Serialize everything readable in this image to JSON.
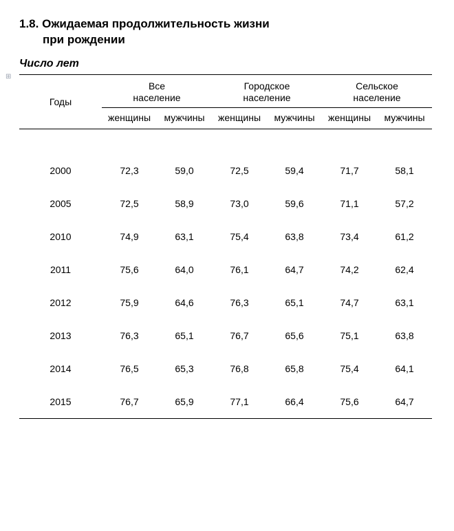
{
  "document": {
    "section_number": "1.8.",
    "title_line1": "Ожидаемая продолжительность жизни",
    "title_line2": "при рождении",
    "subtitle": "Число лет",
    "marker": "⊞"
  },
  "table": {
    "type": "table",
    "text_color": "#000000",
    "background_color": "#ffffff",
    "border_color": "#000000",
    "font_size": 14,
    "columns": {
      "years_label": "Годы",
      "groups": [
        {
          "label_line1": "Все",
          "label_line2": "население"
        },
        {
          "label_line1": "Городское",
          "label_line2": "население"
        },
        {
          "label_line1": "Сельское",
          "label_line2": "население"
        }
      ],
      "sub_women": "женщины",
      "sub_men": "мужчины"
    },
    "rows": [
      {
        "year": "2000",
        "cells": [
          "72,3",
          "59,0",
          "72,5",
          "59,4",
          "71,7",
          "58,1"
        ]
      },
      {
        "year": "2005",
        "cells": [
          "72,5",
          "58,9",
          "73,0",
          "59,6",
          "71,1",
          "57,2"
        ]
      },
      {
        "year": "2010",
        "cells": [
          "74,9",
          "63,1",
          "75,4",
          "63,8",
          "73,4",
          "61,2"
        ]
      },
      {
        "year": "2011",
        "cells": [
          "75,6",
          "64,0",
          "76,1",
          "64,7",
          "74,2",
          "62,4"
        ]
      },
      {
        "year": "2012",
        "cells": [
          "75,9",
          "64,6",
          "76,3",
          "65,1",
          "74,7",
          "63,1"
        ]
      },
      {
        "year": "2013",
        "cells": [
          "76,3",
          "65,1",
          "76,7",
          "65,6",
          "75,1",
          "63,8"
        ]
      },
      {
        "year": "2014",
        "cells": [
          "76,5",
          "65,3",
          "76,8",
          "65,8",
          "75,4",
          "64,1"
        ]
      },
      {
        "year": "2015",
        "cells": [
          "76,7",
          "65,9",
          "77,1",
          "66,4",
          "75,6",
          "64,7"
        ]
      }
    ]
  }
}
